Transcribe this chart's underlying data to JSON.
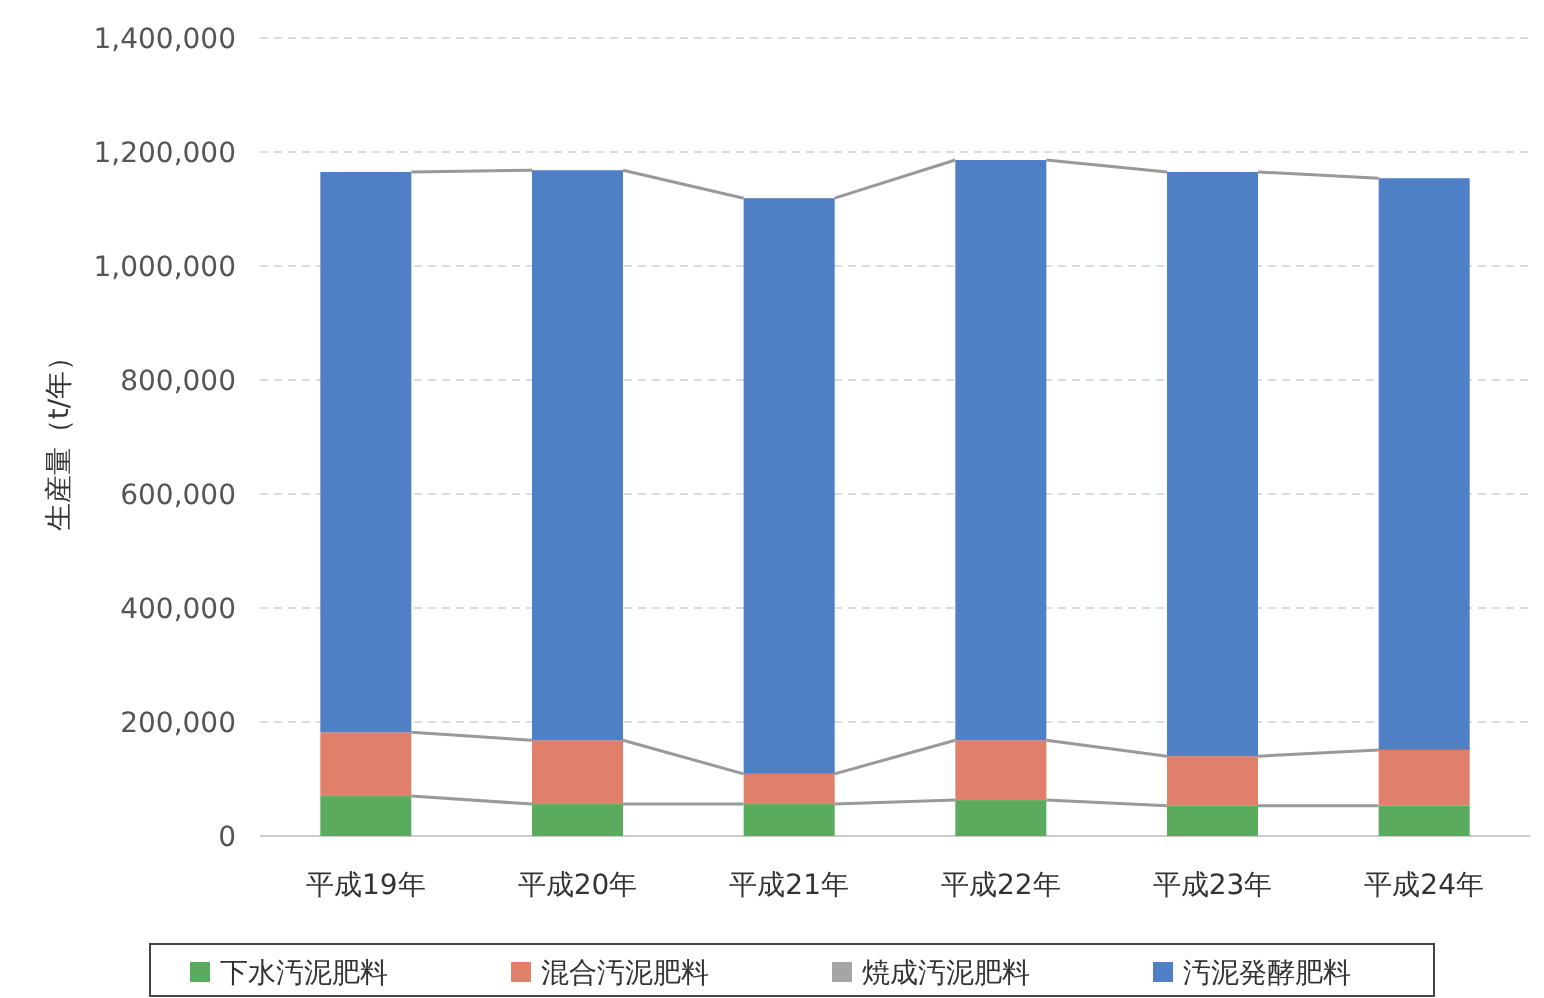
{
  "chart_data": {
    "type": "bar",
    "stacked": true,
    "ylabel": "生産量（t/年）",
    "categories": [
      "平成19年",
      "平成20年",
      "平成21年",
      "平成22年",
      "平成23年",
      "平成24年"
    ],
    "series": [
      {
        "name": "下水汚泥肥料",
        "color": "#5aab5e",
        "values": [
          70000,
          56000,
          56000,
          63000,
          53000,
          53000
        ]
      },
      {
        "name": "混合汚泥肥料",
        "color": "#e0806a",
        "values": [
          112000,
          112000,
          53000,
          105000,
          87000,
          98000
        ]
      },
      {
        "name": "焼成汚泥肥料",
        "color": "#a5a5a5",
        "values": [
          0,
          0,
          0,
          0,
          0,
          0
        ]
      },
      {
        "name": "汚泥発酵肥料",
        "color": "#4f7fc4",
        "values": [
          983000,
          1000000,
          1010000,
          1018000,
          1025000,
          1003000
        ]
      }
    ],
    "ylim": [
      0,
      1400000
    ],
    "yticks": [
      {
        "value": 0,
        "label": "0"
      },
      {
        "value": 200000,
        "label": "200,000"
      },
      {
        "value": 400000,
        "label": "400,000"
      },
      {
        "value": 600000,
        "label": "600,000"
      },
      {
        "value": 800000,
        "label": "800,000"
      },
      {
        "value": 1000000,
        "label": "1,000,000"
      },
      {
        "value": 1200000,
        "label": "1,200,000"
      },
      {
        "value": 1400000,
        "label": "1,400,000"
      }
    ],
    "grid": "y",
    "legend": "bottom"
  }
}
